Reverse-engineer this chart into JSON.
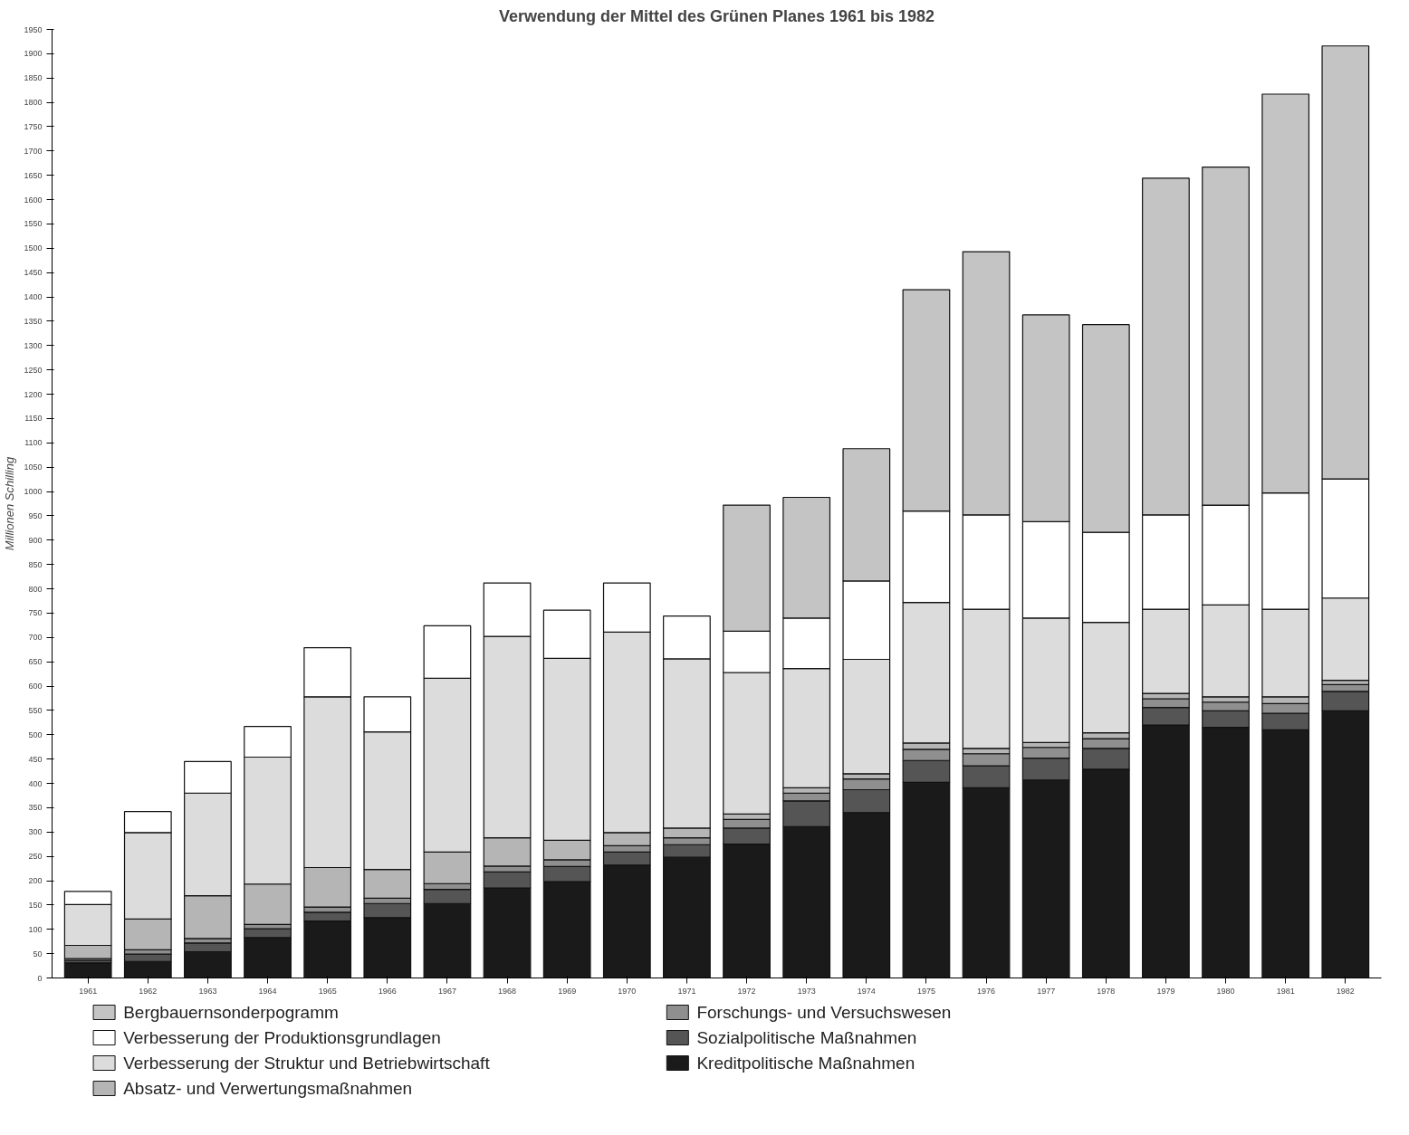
{
  "chart_data": {
    "type": "bar",
    "stacked": true,
    "title": "Verwendung der Mittel des Grünen Planes 1961 bis 1982",
    "ylabel": "Millionen Schilling",
    "categories": [
      "1961",
      "1962",
      "1963",
      "1964",
      "1965",
      "1966",
      "1967",
      "1968",
      "1969",
      "1970",
      "1971",
      "1972",
      "1973",
      "1974",
      "1975",
      "1976",
      "1977",
      "1978",
      "1979",
      "1980",
      "1981",
      "1982"
    ],
    "ylim": [
      0,
      1950
    ],
    "yticks": [
      0,
      50,
      100,
      150,
      200,
      250,
      300,
      350,
      400,
      450,
      500,
      550,
      600,
      650,
      700,
      750,
      800,
      850,
      900,
      950,
      1000,
      1050,
      1100,
      1150,
      1200,
      1250,
      1300,
      1350,
      1400,
      1450,
      1500,
      1550,
      1600,
      1650,
      1700,
      1750,
      1800,
      1850,
      1900,
      1950
    ],
    "grid": false,
    "legend": "bottom",
    "series": [
      {
        "name": "Kreditpolitische Maßnahmen",
        "color": "#1a1a1a",
        "values": [
          31,
          34,
          54,
          83,
          117,
          124,
          153,
          185,
          198,
          232,
          248,
          275,
          311,
          340,
          402,
          391,
          407,
          429,
          520,
          515,
          510,
          549
        ]
      },
      {
        "name": "Sozialpolitische Maßnahmen",
        "color": "#555555",
        "values": [
          5,
          15,
          18,
          18,
          18,
          29,
          29,
          33,
          31,
          27,
          26,
          33,
          53,
          47,
          45,
          45,
          45,
          43,
          36,
          34,
          34,
          40
        ]
      },
      {
        "name": "Forschungs-  und Versuchswesen",
        "color": "#8f8f8f",
        "values": [
          4,
          9,
          9,
          9,
          11,
          11,
          12,
          12,
          14,
          13,
          14,
          18,
          16,
          22,
          23,
          25,
          22,
          20,
          18,
          18,
          20,
          14
        ]
      },
      {
        "name": "Absatz- und Verwertungsmaßnahmen",
        "color": "#b5b5b5",
        "values": [
          27,
          63,
          88,
          83,
          81,
          59,
          65,
          58,
          40,
          27,
          20,
          11,
          11,
          11,
          13,
          11,
          10,
          12,
          11,
          11,
          14,
          9
        ]
      },
      {
        "name": "Verbesserung der Struktur und Betriebwirtschaft",
        "color": "#dcdcdc",
        "values": [
          84,
          178,
          211,
          261,
          351,
          283,
          357,
          414,
          374,
          412,
          348,
          291,
          245,
          235,
          289,
          286,
          256,
          227,
          173,
          189,
          180,
          169
        ]
      },
      {
        "name": "Verbesserung der Produktionsgrundlagen",
        "color": "#ffffff",
        "values": [
          27,
          43,
          65,
          63,
          101,
          72,
          108,
          110,
          99,
          101,
          88,
          85,
          104,
          161,
          188,
          194,
          198,
          185,
          194,
          205,
          239,
          245
        ]
      },
      {
        "name": "Bergbauernsonderpogramm",
        "color": "#c4c4c4",
        "values": [
          null,
          null,
          null,
          null,
          null,
          null,
          null,
          null,
          null,
          null,
          null,
          259,
          248,
          272,
          455,
          541,
          425,
          427,
          692,
          695,
          820,
          890
        ]
      }
    ]
  }
}
